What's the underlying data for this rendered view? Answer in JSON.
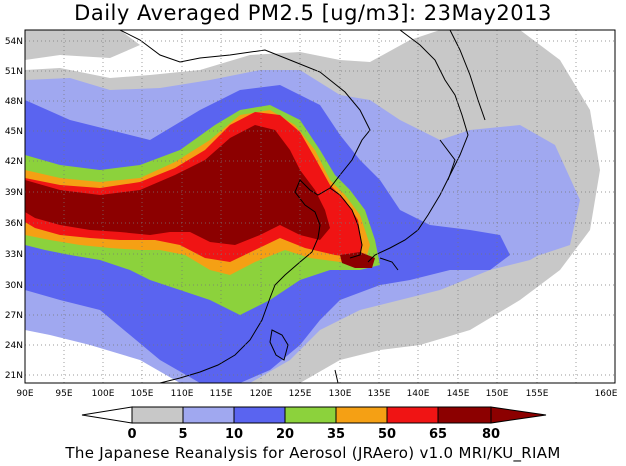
{
  "title": "Daily Averaged PM2.5 [ug/m3]: 23May2013",
  "caption": "The Japanese Reanalysis for Aerosol (JRAero) v1.0 MRI/KU_RIAM",
  "lon_labels": [
    "90E",
    "95E",
    "100E",
    "105E",
    "110E",
    "115E",
    "120E",
    "125E",
    "130E",
    "135E",
    "140E",
    "145E",
    "150E",
    "155E",
    "160E"
  ],
  "lat_labels": [
    "54N",
    "51N",
    "48N",
    "45N",
    "42N",
    "39N",
    "36N",
    "33N",
    "30N",
    "27N",
    "24N",
    "21N"
  ],
  "colorbar": {
    "tick_labels": [
      "0",
      "5",
      "10",
      "20",
      "35",
      "50",
      "65",
      "80"
    ],
    "colors": [
      "#ffffff",
      "#c8c8c8",
      "#a0a8f0",
      "#5a64f0",
      "#8cd23c",
      "#f5a014",
      "#f01414",
      "#8c0000"
    ]
  },
  "levels": {
    "grey_5": "#c8c8c8",
    "lavender_10": "#a0a8f0",
    "blue_20": "#5a64f0",
    "green_35": "#8cd23c",
    "orange_50": "#f5a014",
    "red_65": "#f01414",
    "darkred_80": "#8c0000"
  }
}
